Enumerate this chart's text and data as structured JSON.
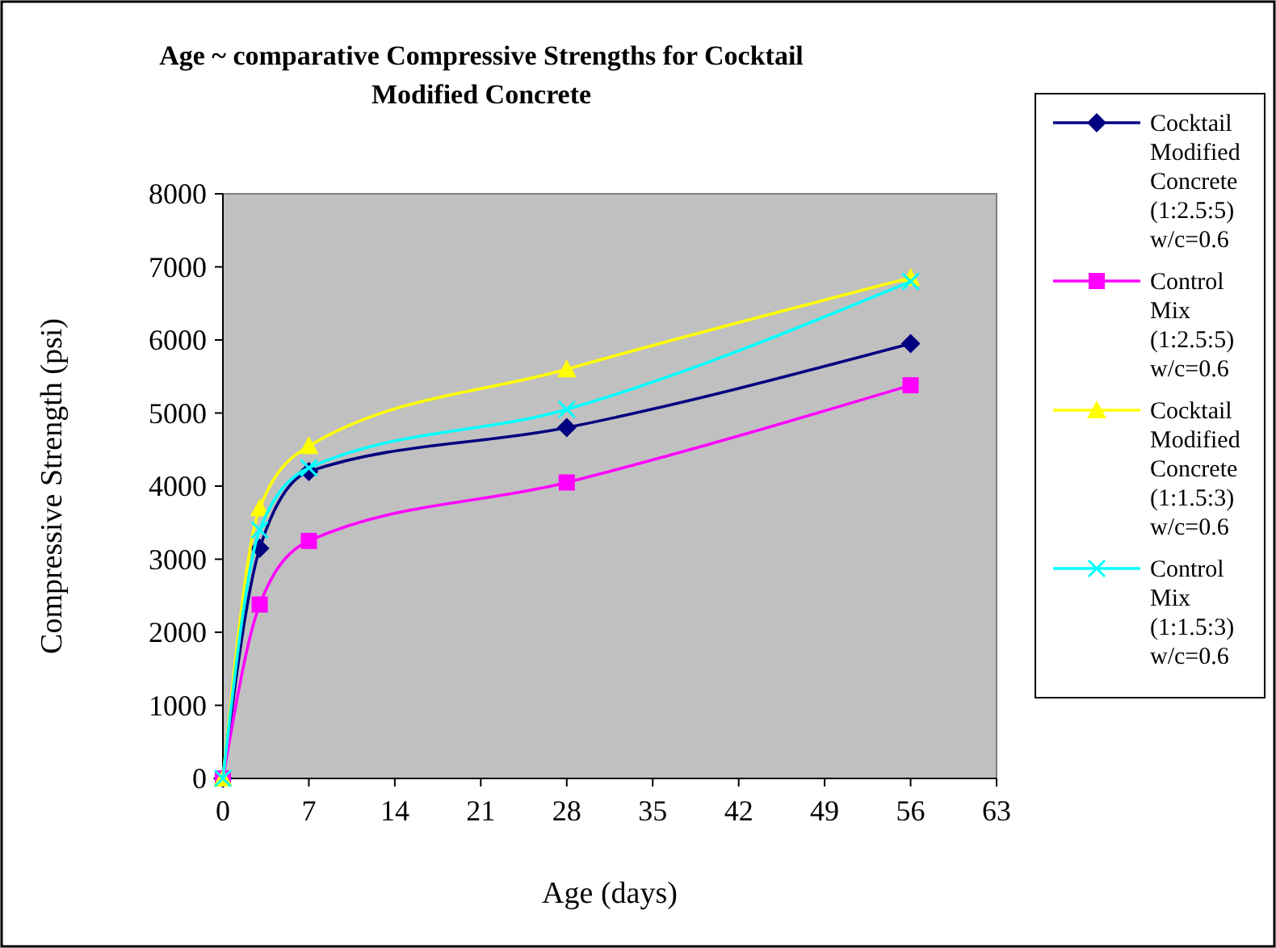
{
  "chart_data": {
    "type": "line",
    "title": "Age ~ comparative Compressive Strengths for Cocktail Modified Concrete",
    "xlabel": "Age (days)",
    "ylabel": "Compressive Strength (psi)",
    "x": [
      0,
      3,
      7,
      28,
      56
    ],
    "xlim": [
      0,
      63
    ],
    "xticks": [
      0,
      7,
      14,
      21,
      28,
      35,
      42,
      49,
      56,
      63
    ],
    "ylim": [
      0,
      8000
    ],
    "yticks": [
      0,
      1000,
      2000,
      3000,
      4000,
      5000,
      6000,
      7000,
      8000
    ],
    "grid": false,
    "legend": "right",
    "series": [
      {
        "name": "Cocktail Modified Concrete (1:2.5:5) w/c=0.6",
        "color": "#000080",
        "marker": "diamond",
        "values": [
          0,
          3150,
          4200,
          4800,
          5950
        ]
      },
      {
        "name": "Control Mix (1:2.5:5) w/c=0.6",
        "color": "#ff00ff",
        "marker": "square",
        "values": [
          0,
          2380,
          3250,
          4050,
          5380
        ]
      },
      {
        "name": "Cocktail Modified Concrete (1:1.5:3) w/c=0.6",
        "color": "#ffff00",
        "marker": "triangle",
        "values": [
          0,
          3700,
          4550,
          5600,
          6850
        ]
      },
      {
        "name": "Control Mix (1:1.5:3) w/c=0.6",
        "color": "#00ffff",
        "marker": "cross",
        "values": [
          0,
          3400,
          4250,
          5050,
          6800
        ]
      }
    ]
  }
}
